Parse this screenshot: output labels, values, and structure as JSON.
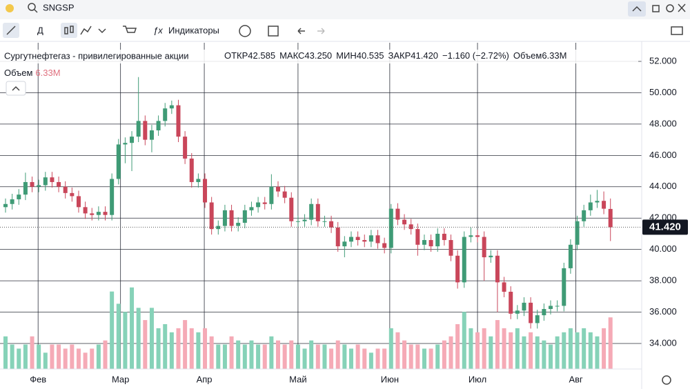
{
  "toolbar": {
    "symbol": "SNGSP",
    "interval": "Д",
    "indicators": "Индикаторы"
  },
  "chart_data": {
    "type": "candlestick",
    "title": "Сургутнефтегаз - привилегированные акции",
    "legend": {
      "open_label": "ОТКР",
      "open_value": "42.585",
      "high_label": "МАКС",
      "high_value": "43.250",
      "low_label": "МИН",
      "low_value": "40.535",
      "close_label": "ЗАКР",
      "close_value": "41.420",
      "change": "−1.160 (−2.72%)",
      "volume_label": "Объем",
      "volume_value": "6.33M"
    },
    "open": [
      42.7,
      42.9,
      43.2,
      43.5,
      44.3,
      44.0,
      44.1,
      44.6,
      44.3,
      44.0,
      43.6,
      43.4,
      42.7,
      42.3,
      42.2,
      42.4,
      42.2,
      44.5,
      46.7,
      46.8,
      47.2,
      48.2,
      47.0,
      47.6,
      48.2,
      49.0,
      49.2,
      47.2,
      45.8,
      44.3,
      44.5,
      43.0,
      41.3,
      41.5,
      42.5,
      41.5,
      41.7,
      42.5,
      42.7,
      43.0,
      42.9,
      44.0,
      43.7,
      43.3,
      41.8,
      41.8,
      41.9,
      42.9,
      41.8,
      41.8,
      41.4,
      40.2,
      40.5,
      40.8,
      40.6,
      40.5,
      40.9,
      40.4,
      40.1,
      42.6,
      41.9,
      41.6,
      41.3,
      40.3,
      40.6,
      40.2,
      41.0,
      40.6,
      39.6,
      37.9,
      40.8,
      40.9,
      40.8,
      39.5,
      39.6,
      37.9,
      37.3,
      35.9,
      36.1,
      36.6,
      35.3,
      35.8,
      36.2,
      36.4,
      36.4,
      38.8,
      40.3,
      41.8,
      42.5,
      43.0,
      43.1,
      42.585
    ],
    "high": [
      43.25,
      43.55,
      43.85,
      44.9,
      44.65,
      44.45,
      44.95,
      44.95,
      44.65,
      44.35,
      43.95,
      43.75,
      43.05,
      42.65,
      42.75,
      42.75,
      44.85,
      47.05,
      47.15,
      47.55,
      51.0,
      48.55,
      47.95,
      48.55,
      49.35,
      49.5,
      49.55,
      47.55,
      46.15,
      44.85,
      44.85,
      43.35,
      41.85,
      42.85,
      42.85,
      42.05,
      42.85,
      43.05,
      43.35,
      43.35,
      44.8,
      44.35,
      44.05,
      43.65,
      42.15,
      42.25,
      43.25,
      43.25,
      42.15,
      42.15,
      41.75,
      40.85,
      41.15,
      41.15,
      40.95,
      41.25,
      41.25,
      40.75,
      42.9,
      42.95,
      42.25,
      41.95,
      41.65,
      40.95,
      40.95,
      41.35,
      41.35,
      40.95,
      39.95,
      41.15,
      41.4,
      41.25,
      41.15,
      39.95,
      39.95,
      38.25,
      37.65,
      36.45,
      36.95,
      36.95,
      36.15,
      36.55,
      36.75,
      36.75,
      39.15,
      40.65,
      42.15,
      42.85,
      43.5,
      43.8,
      43.7,
      43.25
    ],
    "low": [
      42.35,
      42.55,
      42.85,
      43.15,
      43.65,
      43.65,
      43.75,
      43.95,
      43.65,
      43.25,
      43.05,
      42.35,
      41.95,
      41.85,
      41.85,
      41.85,
      41.85,
      44.15,
      45.5,
      45.0,
      46.85,
      46.65,
      46.2,
      47.25,
      47.85,
      48.65,
      46.85,
      45.45,
      43.95,
      43.95,
      42.65,
      40.95,
      40.95,
      41.15,
      41.15,
      41.15,
      41.35,
      42.15,
      42.35,
      42.55,
      42.55,
      43.35,
      42.95,
      41.45,
      41.45,
      41.45,
      41.55,
      41.45,
      41.45,
      41.05,
      39.85,
      39.5,
      40.15,
      40.25,
      40.15,
      40.15,
      40.05,
      39.75,
      39.75,
      41.55,
      41.25,
      40.95,
      39.6,
      39.95,
      39.85,
      39.85,
      40.25,
      39.25,
      37.5,
      37.55,
      40.45,
      40.45,
      38.0,
      39.15,
      36.0,
      36.95,
      35.55,
      35.55,
      35.75,
      34.95,
      34.95,
      35.45,
      35.85,
      36.05,
      36.05,
      38.45,
      39.95,
      41.45,
      42.15,
      42.65,
      42.25,
      40.535
    ],
    "close": [
      42.9,
      43.2,
      43.5,
      44.3,
      44.0,
      44.1,
      44.6,
      44.3,
      44.0,
      43.6,
      43.4,
      42.7,
      42.3,
      42.2,
      42.4,
      42.2,
      44.5,
      46.7,
      46.8,
      47.2,
      48.2,
      47.0,
      47.6,
      48.2,
      49.0,
      49.2,
      47.2,
      45.8,
      44.3,
      44.5,
      43.0,
      41.3,
      41.5,
      42.5,
      41.5,
      41.7,
      42.5,
      42.7,
      43.0,
      42.9,
      44.0,
      43.7,
      43.3,
      41.8,
      41.8,
      41.9,
      42.9,
      41.8,
      41.8,
      41.4,
      40.2,
      40.5,
      40.8,
      40.6,
      40.5,
      40.9,
      40.4,
      40.1,
      42.6,
      41.9,
      41.6,
      41.3,
      40.3,
      40.6,
      40.2,
      41.0,
      40.6,
      39.6,
      37.9,
      40.8,
      40.9,
      40.8,
      39.5,
      39.6,
      37.9,
      37.3,
      35.9,
      36.1,
      36.6,
      35.3,
      35.8,
      36.2,
      36.4,
      36.4,
      38.8,
      40.3,
      41.8,
      42.5,
      43.0,
      43.1,
      42.6,
      41.42
    ],
    "volume": [
      4,
      3,
      2.5,
      3,
      4,
      3,
      2,
      3,
      3,
      2.5,
      3,
      2.5,
      2,
      2.5,
      3,
      3.5,
      9.5,
      8,
      7,
      10,
      7.5,
      6,
      7.5,
      5,
      5.5,
      4.5,
      5,
      6,
      5,
      4.5,
      5,
      4,
      3,
      3,
      4,
      3.5,
      3,
      3.5,
      3,
      3,
      4,
      3.5,
      3,
      3.5,
      3,
      2.5,
      3.5,
      3,
      3,
      2.5,
      3.5,
      3,
      2.5,
      3,
      2.5,
      2,
      2.5,
      2.5,
      5,
      4.5,
      3.5,
      3,
      3,
      2.5,
      2.5,
      3,
      3.5,
      4,
      5.5,
      7,
      5,
      4.5,
      5,
      4,
      6,
      5,
      4.5,
      5,
      4,
      4.5,
      4,
      3.5,
      3,
      4,
      4.5,
      5,
      4.5,
      5,
      4.5,
      4,
      5,
      6.33
    ],
    "vlim": [
      0,
      40
    ],
    "up_color": "#3f9b76",
    "down_color": "#c9465a",
    "up_volume_color": "#86d2b8",
    "down_volume_color": "#f5aab6",
    "xlim": [
      -0.83,
      95.7
    ],
    "xticks": [
      {
        "value": 4.9,
        "label": "Фев"
      },
      {
        "value": 17.3,
        "label": "Мар"
      },
      {
        "value": 29.9,
        "label": "Апр"
      },
      {
        "value": 44.0,
        "label": "Май"
      },
      {
        "value": 57.8,
        "label": "Июн"
      },
      {
        "value": 71.0,
        "label": "Июл"
      },
      {
        "value": 85.8,
        "label": "Авг"
      }
    ],
    "ylim": [
      32.37,
      53.19
    ],
    "yticks": [
      {
        "value": 34,
        "label": "34.000"
      },
      {
        "value": 36,
        "label": "36.000"
      },
      {
        "value": 38,
        "label": "38.000"
      },
      {
        "value": 40,
        "label": "40.000"
      },
      {
        "value": 42,
        "label": "42.000"
      },
      {
        "value": 44,
        "label": "44.000"
      },
      {
        "value": 46,
        "label": "46.000"
      },
      {
        "value": 48,
        "label": "48.000"
      },
      {
        "value": 50,
        "label": "50.000"
      },
      {
        "value": 52,
        "label": "52.000"
      }
    ],
    "last_price": {
      "value": 41.42,
      "label": "41.420"
    },
    "grid": true
  }
}
